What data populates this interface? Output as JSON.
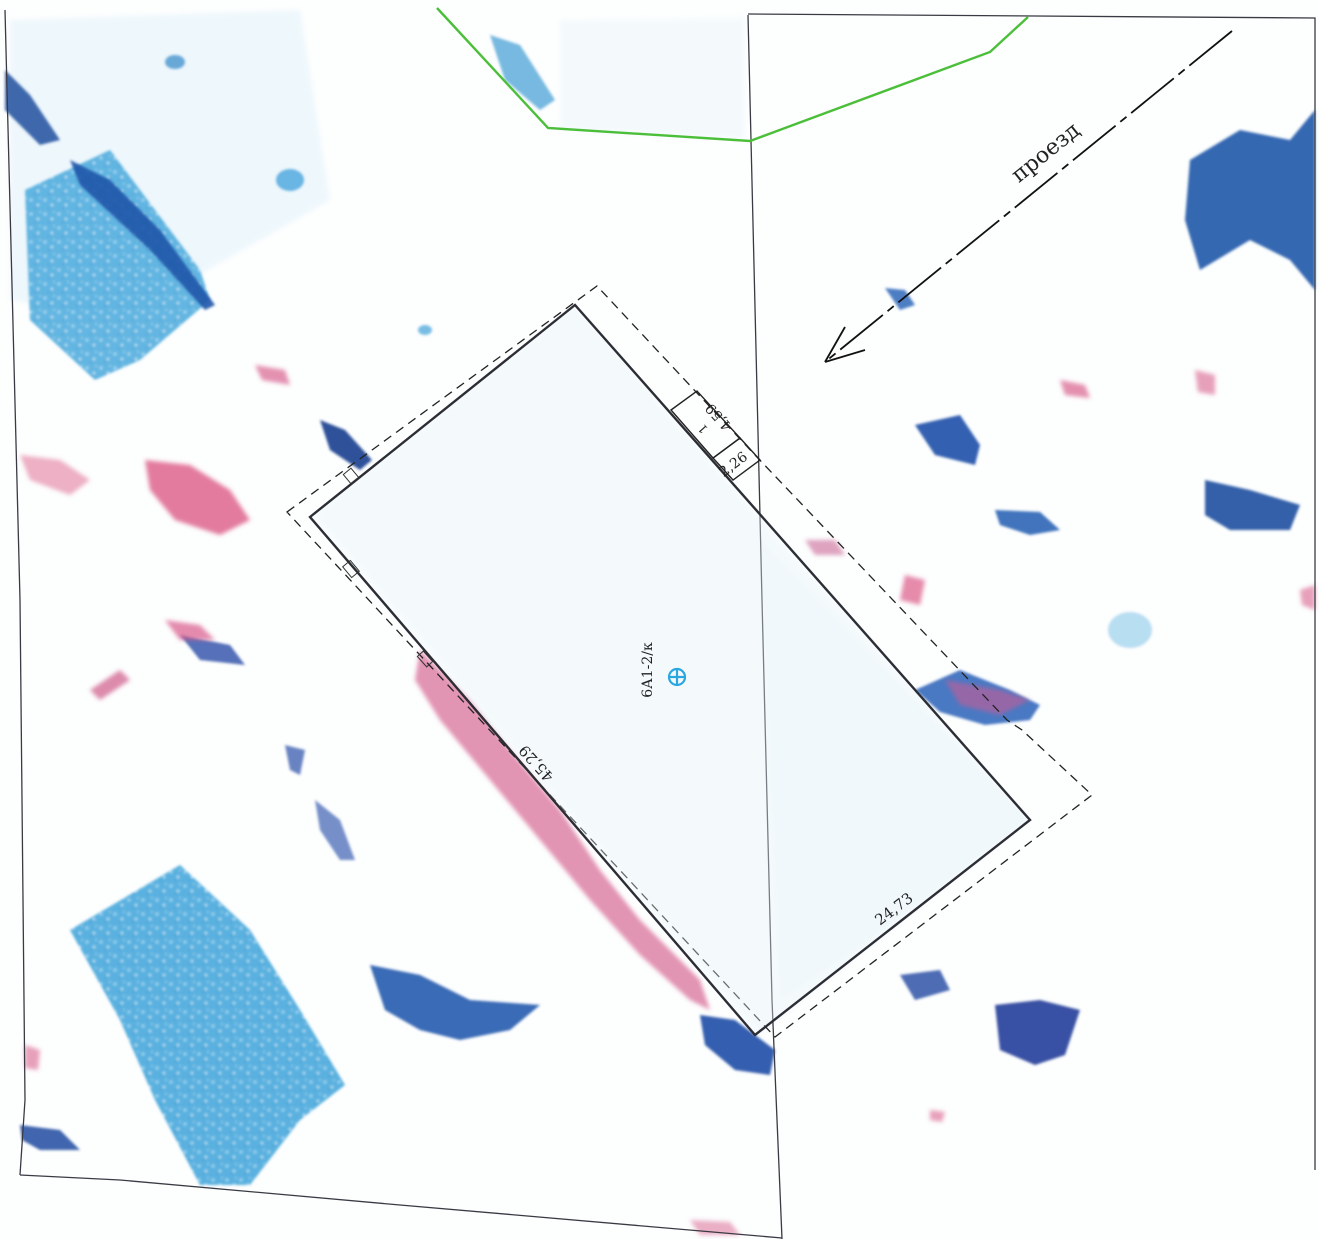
{
  "map": {
    "road_label": "проезд",
    "building_label": "6А1-2/к",
    "marker_icon": "survey-point-icon",
    "dimensions": {
      "long_side": "45,29",
      "short_side": "24,73",
      "porch_width": "4,59",
      "porch_depth": "2,26",
      "porch_number": "1"
    }
  },
  "colors": {
    "boundary": "#3a3a44",
    "green_line": "#4cbf3a",
    "marker": "#2aa6e0",
    "blue_patch": "#3fa6dc",
    "dark_blue": "#1d4fa8",
    "pink": "#dc5a86",
    "outline": "#222222"
  }
}
